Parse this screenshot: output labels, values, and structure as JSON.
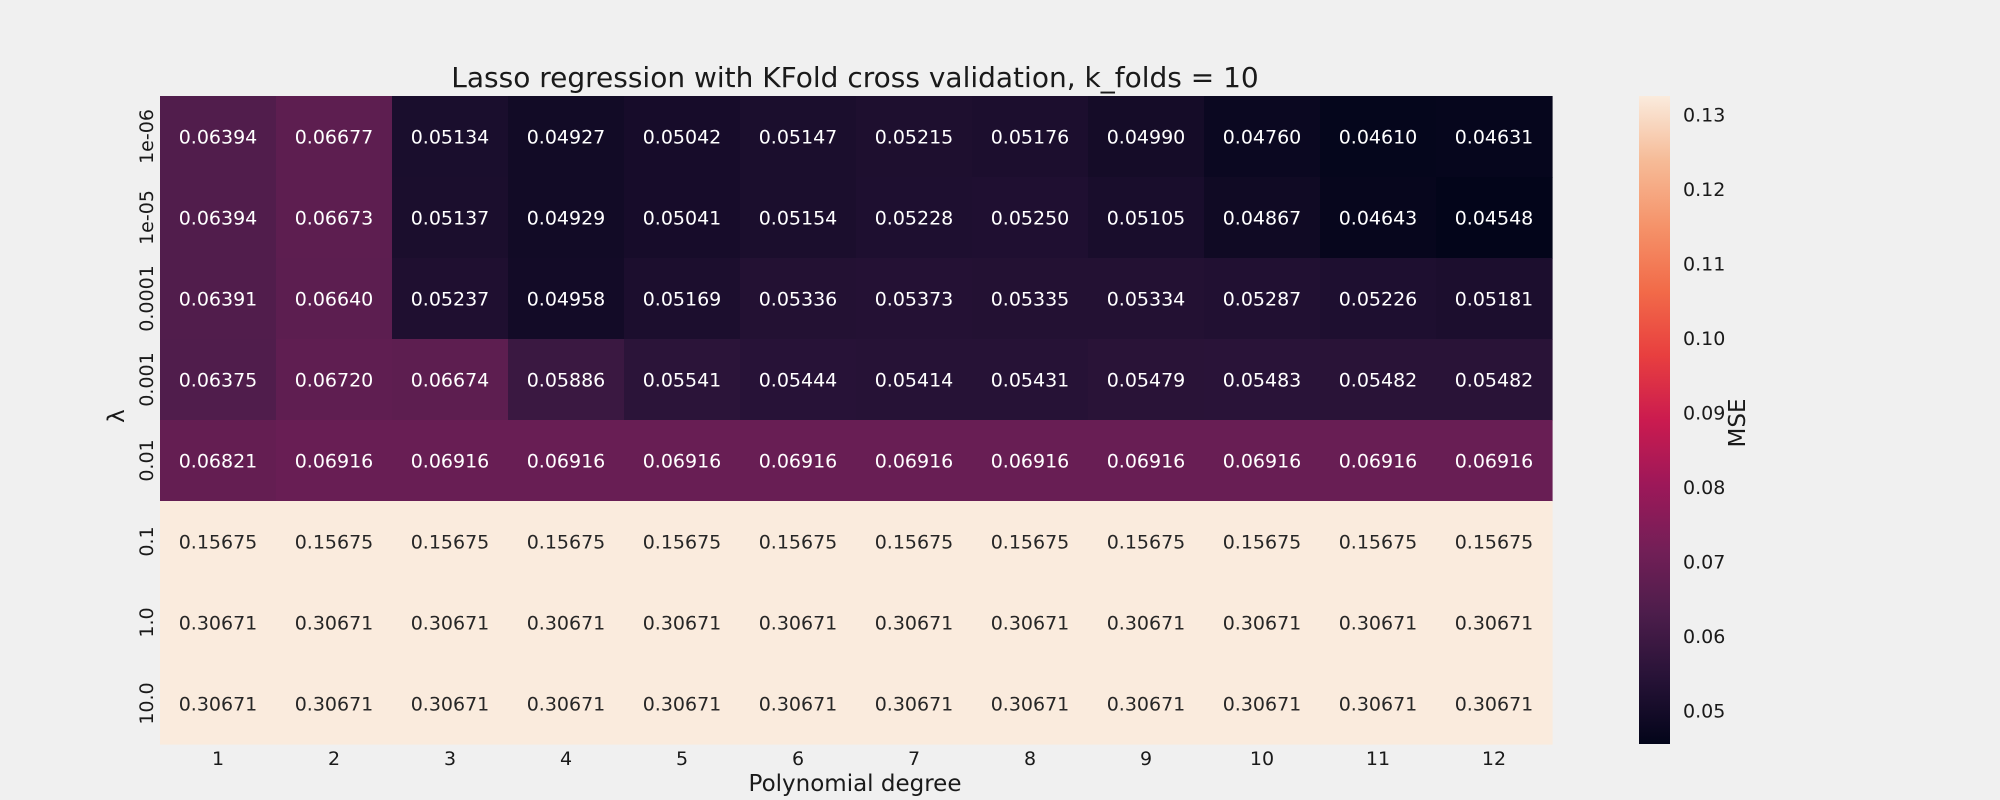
{
  "chart_data": {
    "type": "heatmap",
    "title": "Lasso regression with KFold cross validation, k_folds = 10",
    "xlabel": "Polynomial degree",
    "ylabel": "λ",
    "x_categories": [
      "1",
      "2",
      "3",
      "4",
      "5",
      "6",
      "7",
      "8",
      "9",
      "10",
      "11",
      "12"
    ],
    "y_categories": [
      "1e-06",
      "1e-05",
      "0.0001",
      "0.001",
      "0.01",
      "0.1",
      "1.0",
      "10.0"
    ],
    "values": [
      [
        0.06394,
        0.06677,
        0.05134,
        0.04927,
        0.05042,
        0.05147,
        0.05215,
        0.05176,
        0.0499,
        0.0476,
        0.0461,
        0.04631
      ],
      [
        0.06394,
        0.06673,
        0.05137,
        0.04929,
        0.05041,
        0.05154,
        0.05228,
        0.0525,
        0.05105,
        0.04867,
        0.04643,
        0.04548
      ],
      [
        0.06391,
        0.0664,
        0.05237,
        0.04958,
        0.05169,
        0.05336,
        0.05373,
        0.05335,
        0.05334,
        0.05287,
        0.05226,
        0.05181
      ],
      [
        0.06375,
        0.0672,
        0.06674,
        0.05886,
        0.05541,
        0.05444,
        0.05414,
        0.05431,
        0.05479,
        0.05483,
        0.05482,
        0.05482
      ],
      [
        0.06821,
        0.06916,
        0.06916,
        0.06916,
        0.06916,
        0.06916,
        0.06916,
        0.06916,
        0.06916,
        0.06916,
        0.06916,
        0.06916
      ],
      [
        0.15675,
        0.15675,
        0.15675,
        0.15675,
        0.15675,
        0.15675,
        0.15675,
        0.15675,
        0.15675,
        0.15675,
        0.15675,
        0.15675
      ],
      [
        0.30671,
        0.30671,
        0.30671,
        0.30671,
        0.30671,
        0.30671,
        0.30671,
        0.30671,
        0.30671,
        0.30671,
        0.30671,
        0.30671
      ],
      [
        0.30671,
        0.30671,
        0.30671,
        0.30671,
        0.30671,
        0.30671,
        0.30671,
        0.30671,
        0.30671,
        0.30671,
        0.30671,
        0.30671
      ]
    ],
    "value_format_decimals": 5,
    "colorbar": {
      "label": "MSE",
      "range": [
        0.0455,
        0.1325
      ],
      "ticks": [
        "0.05",
        "0.06",
        "0.07",
        "0.08",
        "0.09",
        "0.10",
        "0.11",
        "0.12",
        "0.13"
      ],
      "colormap": "rocket"
    },
    "grid": false
  }
}
